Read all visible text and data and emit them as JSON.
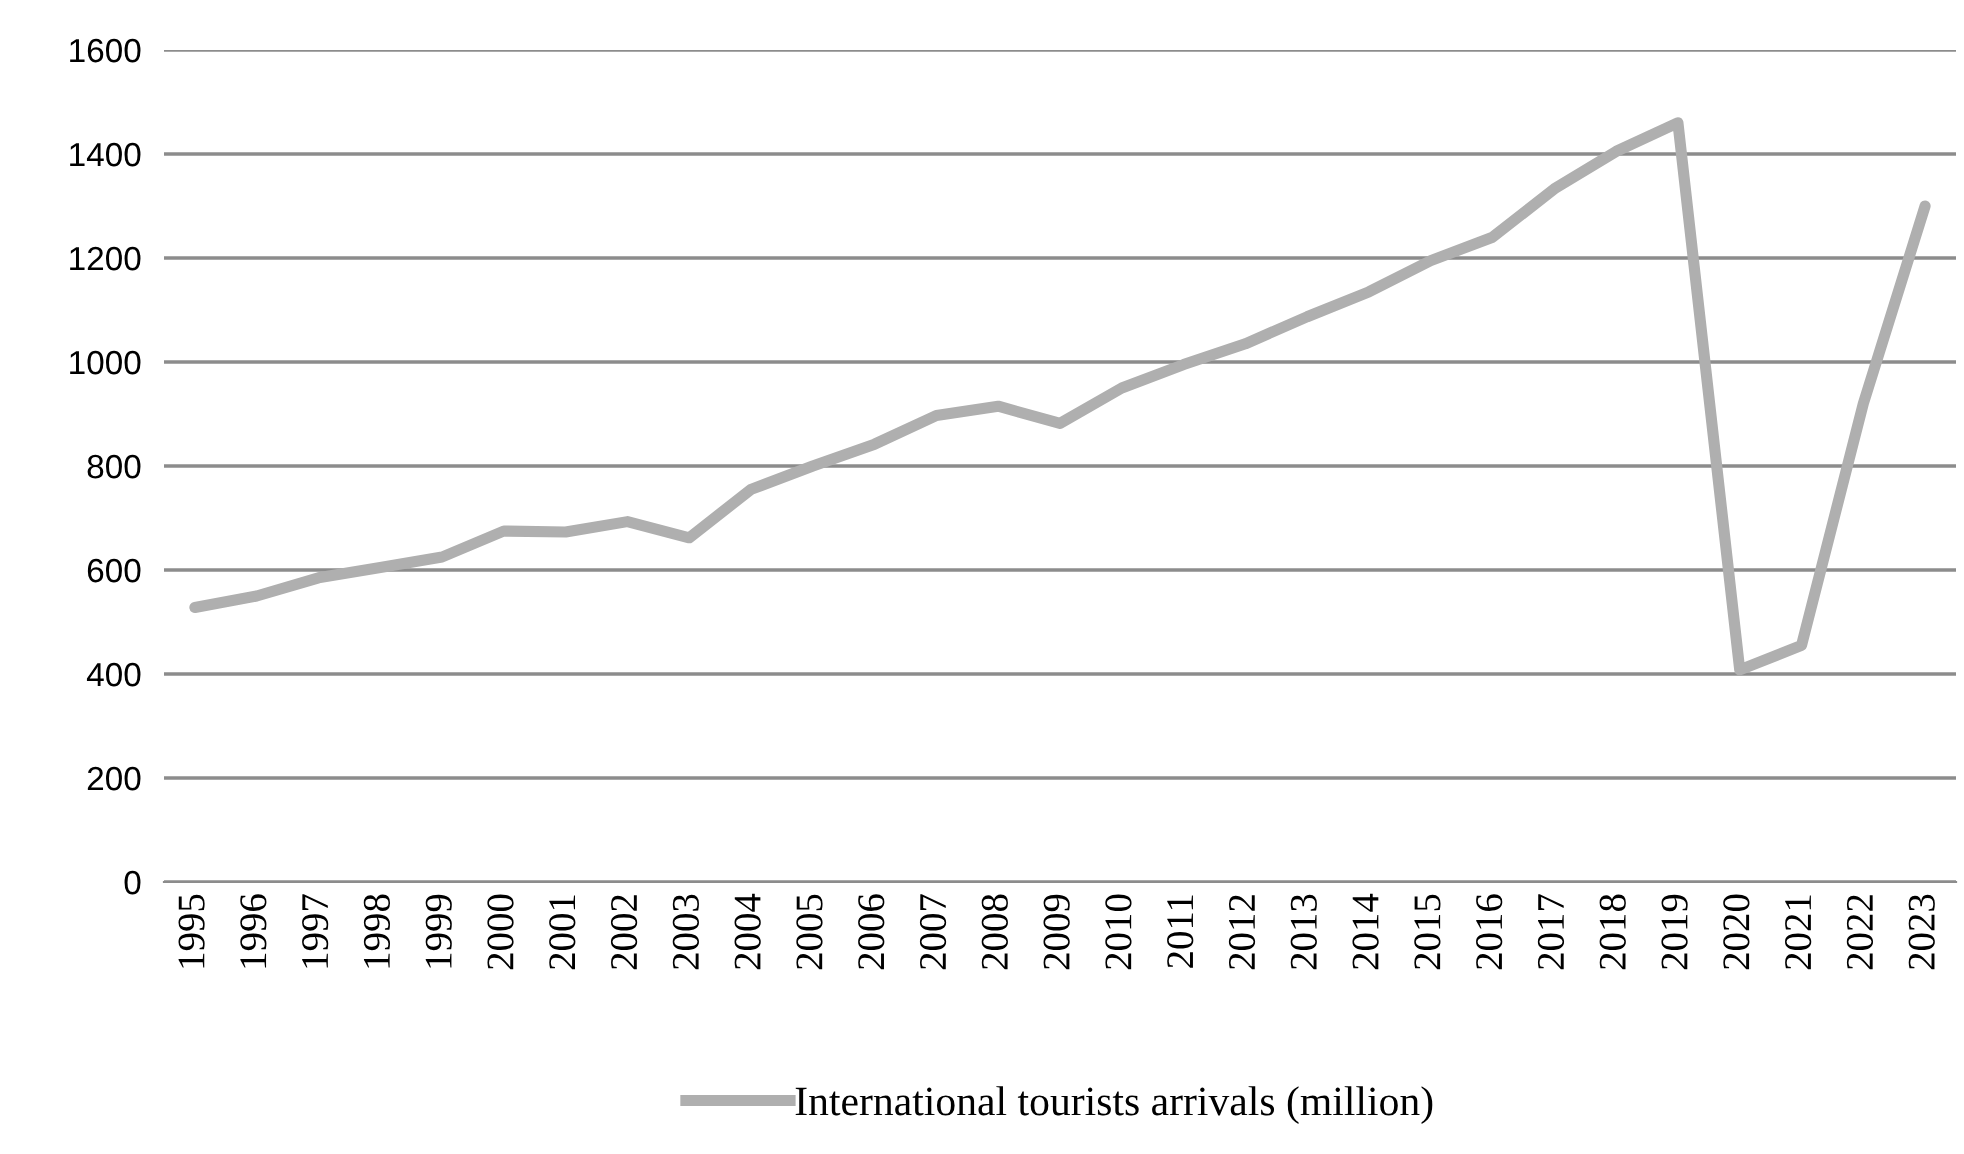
{
  "chart_data": {
    "type": "line",
    "categories": [
      "1995",
      "1996",
      "1997",
      "1998",
      "1999",
      "2000",
      "2001",
      "2002",
      "2003",
      "2004",
      "2005",
      "2006",
      "2007",
      "2008",
      "2009",
      "2010",
      "2011",
      "2012",
      "2013",
      "2014",
      "2015",
      "2016",
      "2017",
      "2018",
      "2019",
      "2020",
      "2021",
      "2022",
      "2023"
    ],
    "series": [
      {
        "name": "International tourists arrivals (million)",
        "color": "#afafaf",
        "values": [
          528,
          550,
          585,
          605,
          625,
          675,
          673,
          693,
          662,
          755,
          800,
          842,
          897,
          915,
          882,
          950,
          995,
          1035,
          1087,
          1135,
          1195,
          1240,
          1333,
          1405,
          1460,
          408,
          455,
          920,
          1300
        ]
      }
    ],
    "ylim": [
      0,
      1600
    ],
    "yticks": [
      0,
      200,
      400,
      600,
      800,
      1000,
      1200,
      1400,
      1600
    ],
    "grid": "y",
    "legend": "bottom",
    "marker": "none",
    "line_style": "solid"
  }
}
